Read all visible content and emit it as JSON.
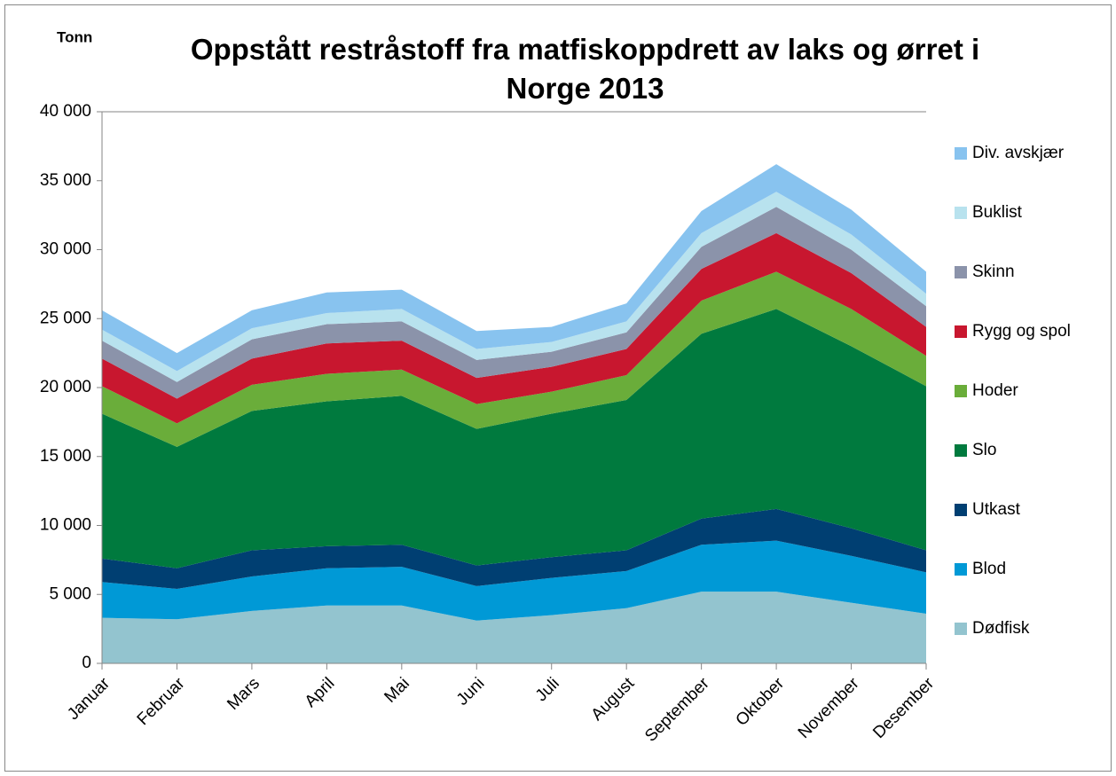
{
  "chart_data": {
    "type": "stacked_area",
    "title": "Oppstått restråstoff fra matfiskoppdrett  av laks og ørret i Norge 2013",
    "y_label": "Tonn",
    "categories": [
      "Januar",
      "Februar",
      "Mars",
      "April",
      "Mai",
      "Juni",
      "Juli",
      "August",
      "September",
      "Oktober",
      "November",
      "Desember"
    ],
    "series": [
      {
        "name": "Dødfisk",
        "color": "#93c4cf",
        "values": [
          3300,
          3200,
          3800,
          4200,
          4200,
          3100,
          3500,
          4000,
          5200,
          5200,
          4400,
          3600
        ]
      },
      {
        "name": "Blod",
        "color": "#0099d6",
        "values": [
          2600,
          2200,
          2500,
          2700,
          2800,
          2500,
          2700,
          2700,
          3400,
          3700,
          3400,
          3000
        ]
      },
      {
        "name": "Utkast",
        "color": "#003f72",
        "values": [
          1700,
          1500,
          1900,
          1600,
          1600,
          1500,
          1500,
          1500,
          1900,
          2300,
          2000,
          1600
        ]
      },
      {
        "name": "Slo",
        "color": "#007a3e",
        "values": [
          10500,
          8800,
          10100,
          10500,
          10800,
          9900,
          10400,
          10900,
          13400,
          14500,
          13200,
          11900
        ]
      },
      {
        "name": "Hoder",
        "color": "#6aad3a",
        "values": [
          2000,
          1700,
          1900,
          2000,
          1900,
          1800,
          1600,
          1800,
          2400,
          2700,
          2700,
          2200
        ]
      },
      {
        "name": "Rygg og spol",
        "color": "#c8172f",
        "values": [
          2000,
          1800,
          1900,
          2200,
          2100,
          1900,
          1800,
          1900,
          2300,
          2800,
          2600,
          2100
        ]
      },
      {
        "name": "Skinn",
        "color": "#8b93aa",
        "values": [
          1300,
          1200,
          1400,
          1400,
          1400,
          1300,
          1100,
          1200,
          1600,
          1900,
          1700,
          1500
        ]
      },
      {
        "name": "Buklist",
        "color": "#b8e2ee",
        "values": [
          800,
          800,
          800,
          800,
          900,
          800,
          700,
          800,
          1000,
          1100,
          1100,
          900
        ]
      },
      {
        "name": "Div. avskjær",
        "color": "#88c3ef",
        "values": [
          1400,
          1300,
          1300,
          1500,
          1400,
          1300,
          1100,
          1300,
          1600,
          2000,
          1800,
          1600
        ]
      }
    ],
    "ylim": [
      0,
      40000
    ],
    "yticks": [
      0,
      {
        "value": 5000,
        "label": "5 000"
      },
      {
        "value": 10000,
        "label": "10 000"
      },
      {
        "value": 15000,
        "label": "15 000"
      },
      {
        "value": 20000,
        "label": "20 000"
      },
      {
        "value": 25000,
        "label": "25 000"
      },
      {
        "value": 30000,
        "label": "30 000"
      },
      {
        "value": 35000,
        "label": "35 000"
      },
      {
        "value": 40000,
        "label": "40 000"
      }
    ],
    "grid": false,
    "legend": "right"
  }
}
